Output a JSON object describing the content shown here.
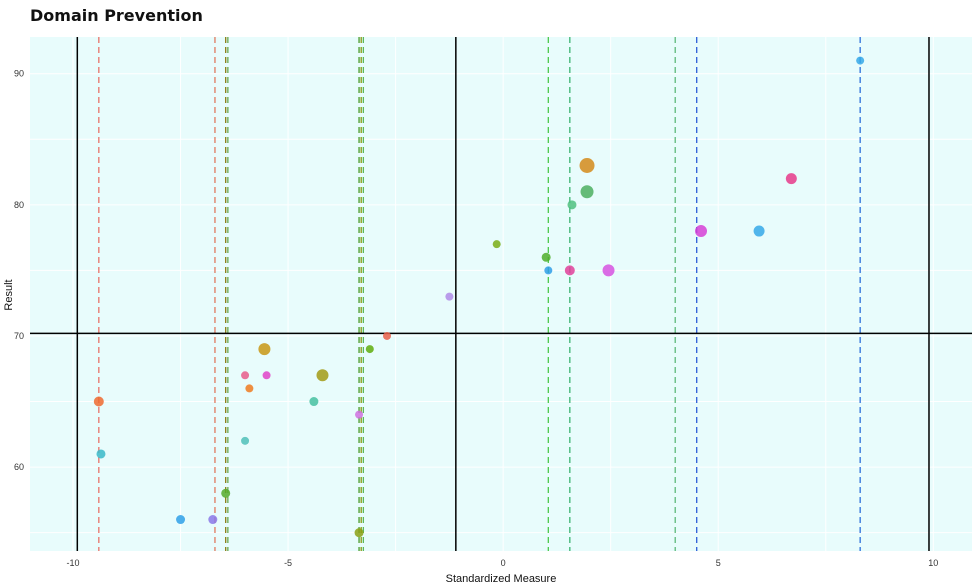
{
  "chart_data": {
    "type": "scatter",
    "title": "Domain Prevention",
    "xlabel": "Standardized Measure",
    "ylabel": "Result",
    "xlim": [
      -11,
      10.9
    ],
    "ylim": [
      53.6,
      92.8
    ],
    "xticks": [
      -10,
      -5,
      0,
      5,
      10
    ],
    "xtick_labels": [
      "-10",
      "-5",
      "0",
      "5",
      "10"
    ],
    "yticks": [
      60,
      70,
      80,
      90
    ],
    "ytick_labels": [
      "60",
      "70",
      "80",
      "90"
    ],
    "grid": true,
    "legend": "none",
    "background_color": "#e8fcfc",
    "reference_lines": {
      "vertical_solid": [
        -9.9,
        -1.1,
        9.9
      ],
      "horizontal_solid": [
        70.2
      ]
    },
    "dashed_vlines": [
      {
        "x": -9.4,
        "color": "#e8736a"
      },
      {
        "x": -6.7,
        "color": "#e07a5f"
      },
      {
        "x": -6.45,
        "color": "#8a7a10"
      },
      {
        "x": -6.4,
        "color": "#6aa84f"
      },
      {
        "x": -3.35,
        "color": "#4c9a2a"
      },
      {
        "x": -3.3,
        "color": "#8a9a10"
      },
      {
        "x": -3.25,
        "color": "#5cb85c"
      },
      {
        "x": 1.05,
        "color": "#4cc94c"
      },
      {
        "x": 1.55,
        "color": "#3cb371"
      },
      {
        "x": 4.0,
        "color": "#5cb87a"
      },
      {
        "x": 4.5,
        "color": "#2a5bd7"
      },
      {
        "x": 8.3,
        "color": "#2a6fdb"
      }
    ],
    "points": [
      {
        "x": 8.3,
        "y": 91,
        "size": 8,
        "color": "#35a8e8"
      },
      {
        "x": 1.95,
        "y": 83,
        "size": 15,
        "color": "#d4891a"
      },
      {
        "x": 6.7,
        "y": 82,
        "size": 11,
        "color": "#e6398a"
      },
      {
        "x": 1.95,
        "y": 81,
        "size": 13,
        "color": "#4caf60"
      },
      {
        "x": 1.6,
        "y": 80,
        "size": 9,
        "color": "#4fbf7f"
      },
      {
        "x": 4.6,
        "y": 78,
        "size": 12,
        "color": "#d63fd6"
      },
      {
        "x": 5.95,
        "y": 78,
        "size": 11,
        "color": "#35a8e8"
      },
      {
        "x": -0.15,
        "y": 77,
        "size": 8,
        "color": "#7aad16"
      },
      {
        "x": 1.0,
        "y": 76,
        "size": 9,
        "color": "#4fae2a"
      },
      {
        "x": 1.05,
        "y": 75,
        "size": 8,
        "color": "#2f9ee8"
      },
      {
        "x": 1.55,
        "y": 75,
        "size": 10,
        "color": "#e0409a"
      },
      {
        "x": 2.45,
        "y": 75,
        "size": 12,
        "color": "#d652e0"
      },
      {
        "x": -1.25,
        "y": 73,
        "size": 8,
        "color": "#b08be8"
      },
      {
        "x": -2.7,
        "y": 70,
        "size": 8,
        "color": "#e8604a"
      },
      {
        "x": -3.1,
        "y": 69,
        "size": 8,
        "color": "#5fad0c"
      },
      {
        "x": -5.55,
        "y": 69,
        "size": 12,
        "color": "#c89614"
      },
      {
        "x": -6.0,
        "y": 67,
        "size": 8,
        "color": "#e85a8a"
      },
      {
        "x": -5.5,
        "y": 67,
        "size": 8,
        "color": "#e042c8"
      },
      {
        "x": -4.2,
        "y": 67,
        "size": 12,
        "color": "#a29a14"
      },
      {
        "x": -5.9,
        "y": 66,
        "size": 8,
        "color": "#ee7a1e"
      },
      {
        "x": -9.4,
        "y": 65,
        "size": 10,
        "color": "#ee6a30"
      },
      {
        "x": -4.4,
        "y": 65,
        "size": 9,
        "color": "#45c0a0"
      },
      {
        "x": -3.35,
        "y": 64,
        "size": 8,
        "color": "#d070e0"
      },
      {
        "x": -6.0,
        "y": 62,
        "size": 8,
        "color": "#4fc0b8"
      },
      {
        "x": -9.35,
        "y": 61,
        "size": 9,
        "color": "#38b8c8"
      },
      {
        "x": -6.45,
        "y": 58,
        "size": 9,
        "color": "#55aa2a"
      },
      {
        "x": -7.5,
        "y": 56,
        "size": 9,
        "color": "#2fa0e8"
      },
      {
        "x": -6.75,
        "y": 56,
        "size": 9,
        "color": "#8a78e8"
      },
      {
        "x": -3.35,
        "y": 55,
        "size": 9,
        "color": "#8aa014"
      }
    ]
  }
}
